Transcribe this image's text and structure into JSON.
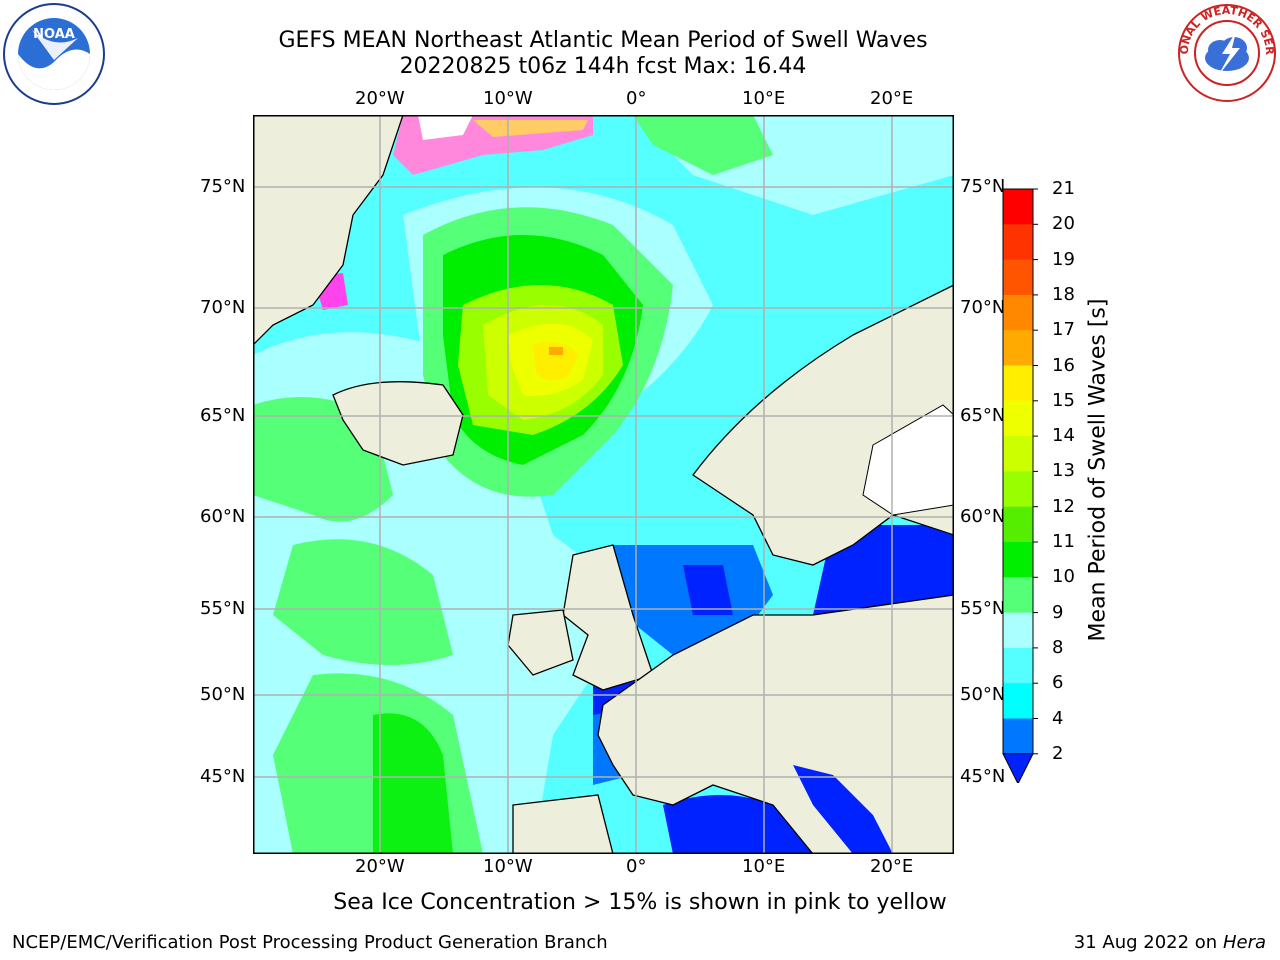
{
  "title": {
    "line1": "GEFS MEAN Northeast Atlantic Mean Period of Swell Waves",
    "line2": "20220825 t06z 144h fcst   Max: 16.44"
  },
  "logos": {
    "left": "NOAA",
    "right": "NATIONAL WEATHER SERVICE"
  },
  "axes": {
    "lon_labels": [
      "20°W",
      "10°W",
      "0°",
      "10°E",
      "20°E"
    ],
    "lat_labels": [
      "75°N",
      "70°N",
      "65°N",
      "60°N",
      "55°N",
      "50°N",
      "45°N"
    ]
  },
  "colorbar": {
    "label": "Mean Period of Swell Waves [s]",
    "ticks": [
      "21",
      "20",
      "19",
      "18",
      "17",
      "16",
      "15",
      "14",
      "13",
      "12",
      "11",
      "10",
      "9",
      "8",
      "6",
      "4",
      "2"
    ],
    "colors": [
      "#ff0000",
      "#ff3300",
      "#ff5500",
      "#ff8800",
      "#ffaa00",
      "#ffee00",
      "#eeff00",
      "#ccff00",
      "#99ff00",
      "#55ee00",
      "#00ee00",
      "#55ff77",
      "#aaffff",
      "#55ffff",
      "#00ffff",
      "#0077ff",
      "#0022ff"
    ]
  },
  "note": "Sea Ice Concentration > 15% is shown in pink to yellow",
  "footer": {
    "left": "NCEP/EMC/Verification Post Processing Product Generation Branch",
    "date": "31 Aug 2022 on",
    "host": "Hera"
  }
}
